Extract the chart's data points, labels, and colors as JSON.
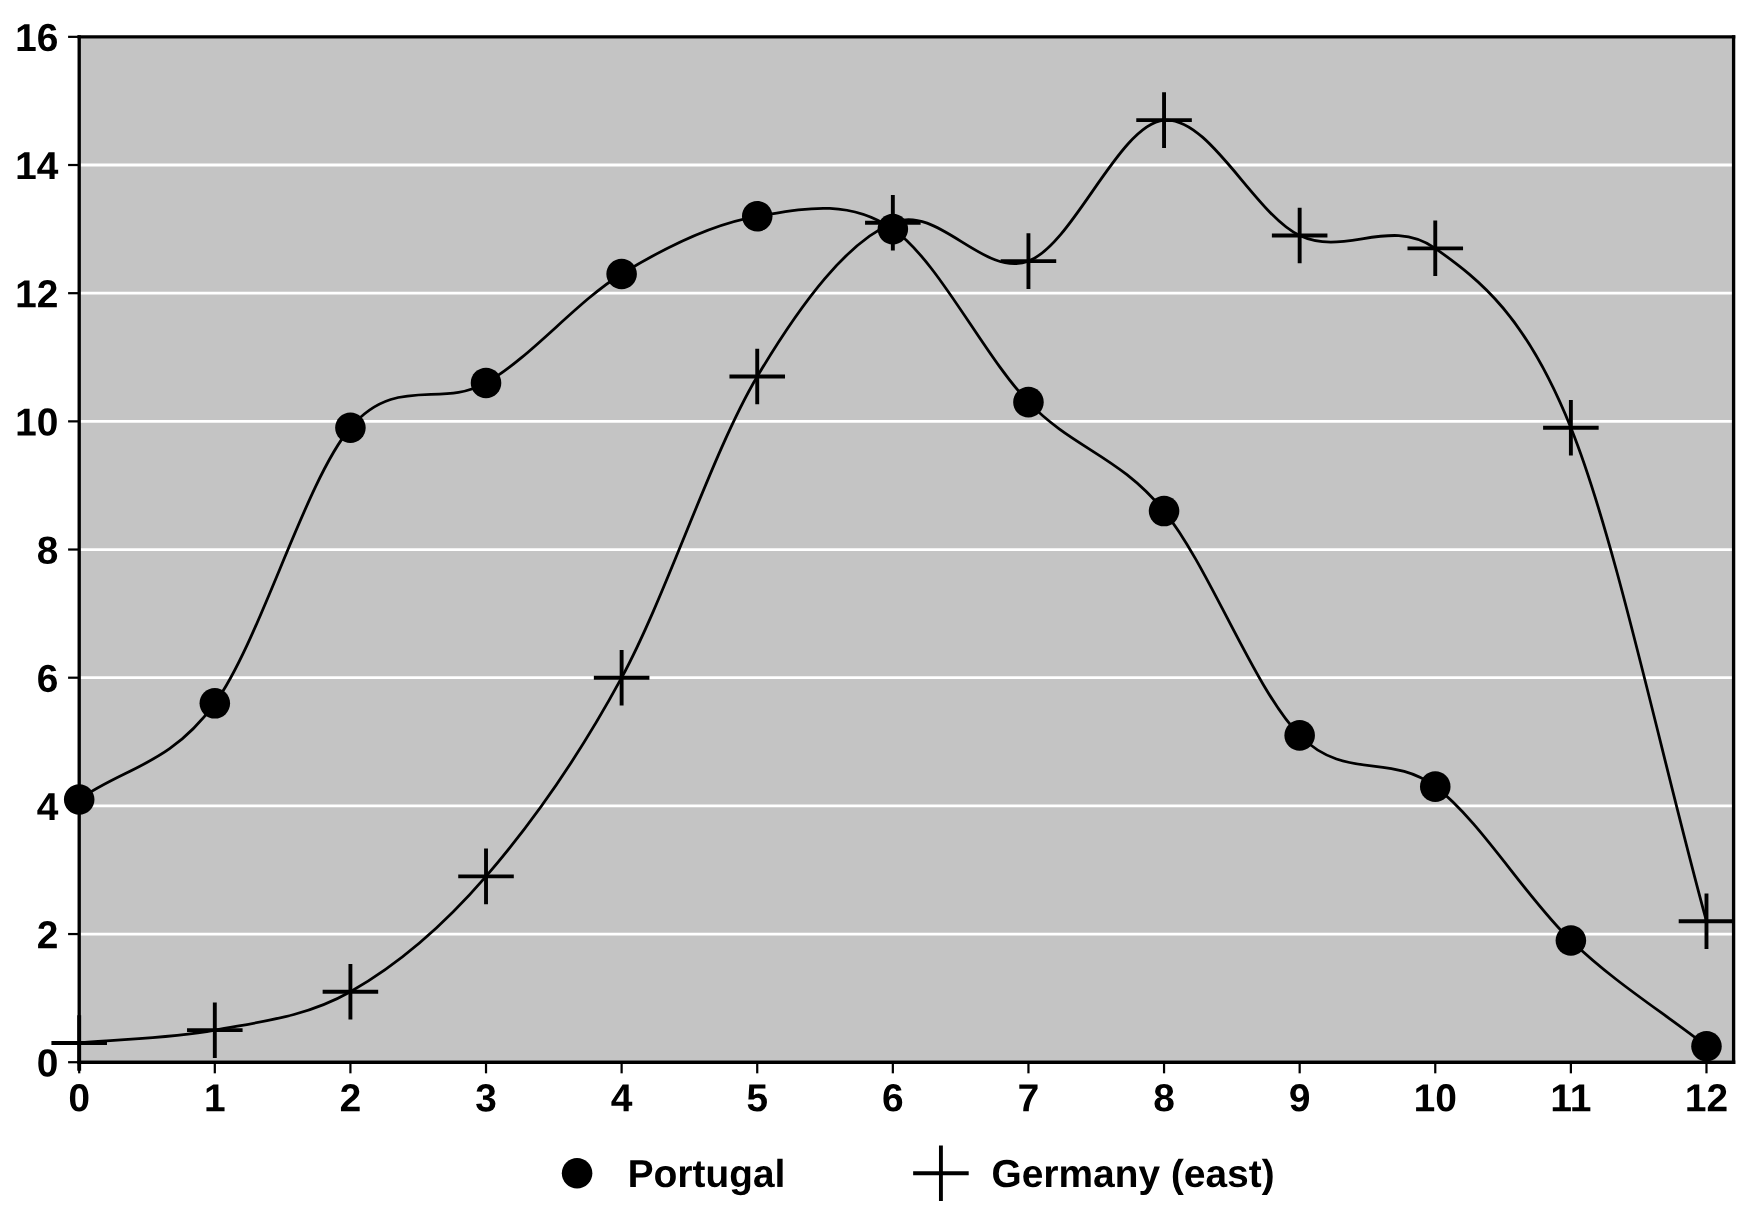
{
  "chart_data": {
    "type": "line",
    "x": [
      0,
      1,
      2,
      3,
      4,
      5,
      6,
      7,
      8,
      9,
      10,
      11,
      12
    ],
    "series": [
      {
        "name": "Portugal",
        "color": "#000000",
        "marker": "circle",
        "values": [
          4.1,
          5.6,
          9.9,
          10.6,
          12.3,
          13.2,
          13.0,
          10.3,
          8.6,
          5.1,
          4.3,
          1.9,
          0.25
        ]
      },
      {
        "name": "Germany (east)",
        "color": "#000000",
        "marker": "cross",
        "values": [
          0.3,
          0.5,
          1.1,
          2.9,
          6.0,
          10.7,
          13.1,
          12.5,
          14.7,
          12.9,
          12.7,
          9.9,
          2.2
        ]
      }
    ],
    "xlim": [
      0,
      12.2
    ],
    "xticks": [
      0,
      1,
      2,
      3,
      4,
      5,
      6,
      7,
      8,
      9,
      10,
      11,
      12
    ],
    "ylim": [
      0,
      16
    ],
    "yticks": [
      0,
      2,
      4,
      6,
      8,
      10,
      12,
      14,
      16
    ],
    "grid": "y",
    "legend": "bottom",
    "line_style": "solid"
  }
}
